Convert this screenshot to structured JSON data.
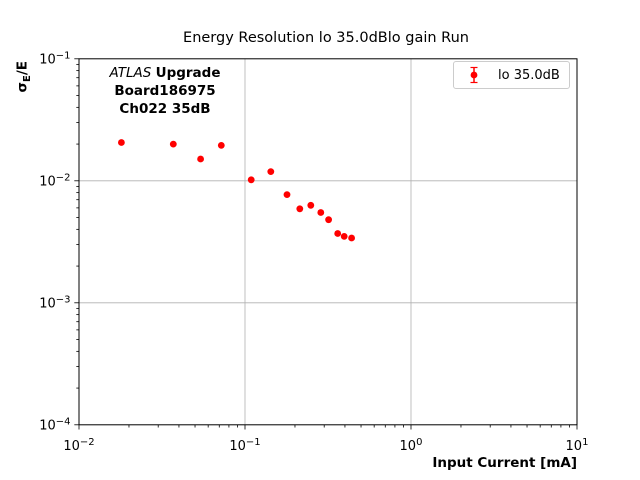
{
  "chart_data": {
    "type": "scatter",
    "title": "Energy Resolution lo 35.0dBlo gain Run",
    "xlabel": "Input Current [mA]",
    "ylabel": "σ_E/E",
    "ylabel_parts": {
      "sigma": "σ",
      "sub": "E",
      "rest": "/E"
    },
    "xscale": "log",
    "yscale": "log",
    "xlim": [
      0.01,
      10
    ],
    "ylim": [
      0.0001,
      0.1
    ],
    "grid": true,
    "legend_position": "upper right",
    "x_ticks": [
      {
        "v": 0.01,
        "base": "10",
        "exp": "−2"
      },
      {
        "v": 0.1,
        "base": "10",
        "exp": "−1"
      },
      {
        "v": 1,
        "base": "10",
        "exp": "0"
      },
      {
        "v": 10,
        "base": "10",
        "exp": "1"
      }
    ],
    "y_ticks": [
      {
        "v": 0.1,
        "base": "10",
        "exp": "−1"
      },
      {
        "v": 0.01,
        "base": "10",
        "exp": "−2"
      },
      {
        "v": 0.001,
        "base": "10",
        "exp": "−3"
      },
      {
        "v": 0.0001,
        "base": "10",
        "exp": "−4"
      }
    ],
    "series": [
      {
        "name": "lo 35.0dB",
        "color": "#ff0000",
        "marker": "circle-with-errorbar",
        "x": [
          0.018,
          0.037,
          0.054,
          0.072,
          0.109,
          0.143,
          0.179,
          0.214,
          0.249,
          0.286,
          0.319,
          0.362,
          0.396,
          0.439
        ],
        "y": [
          0.0206,
          0.02,
          0.0151,
          0.0195,
          0.0102,
          0.0119,
          0.0077,
          0.0059,
          0.0063,
          0.0055,
          0.0048,
          0.0037,
          0.0035,
          0.0034
        ]
      }
    ]
  },
  "annotation": {
    "line1_italic": "ATLAS",
    "line1_bold": "Upgrade",
    "line2": "Board186975",
    "line3": "Ch022 35dB"
  },
  "legend": {
    "label": "lo 35.0dB"
  },
  "colors": {
    "marker": "#ff0000",
    "grid": "#b0b0b0",
    "axis": "#000000",
    "text": "#000000",
    "legend_border": "#cccccc"
  }
}
